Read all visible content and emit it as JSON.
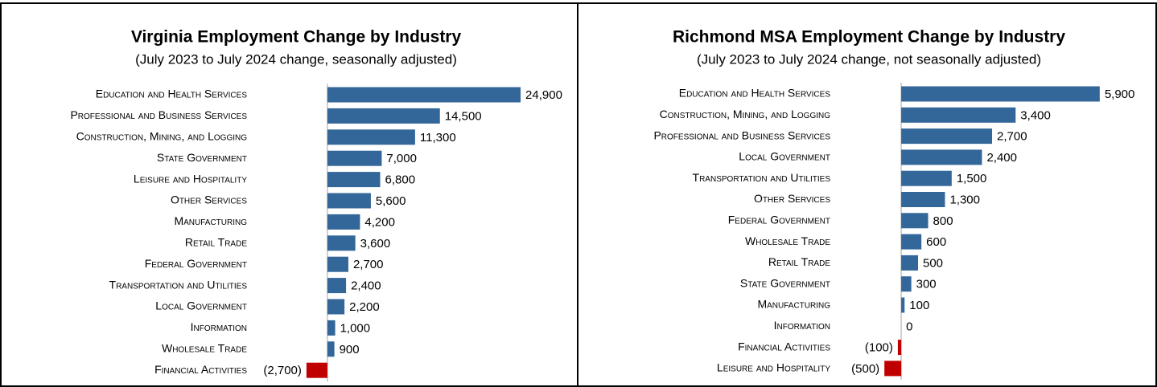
{
  "chart_data": [
    {
      "type": "barh",
      "title": "Virginia Employment Change by Industry",
      "subtitle": "(July 2023 to July 2024 change, seasonally adjusted)",
      "categories": [
        "Education and Health Services",
        "Professional and Business Services",
        "Construction, Mining, and Logging",
        "State Government",
        "Leisure and Hospitality",
        "Other Services",
        "Manufacturing",
        "Retail Trade",
        "Federal Government",
        "Transportation and Utilities",
        "Local Government",
        "Information",
        "Wholesale Trade",
        "Financial Activities"
      ],
      "values": [
        24900,
        14500,
        11300,
        7000,
        6800,
        5600,
        4200,
        3600,
        2700,
        2400,
        2200,
        1000,
        900,
        -2700
      ],
      "value_labels": [
        "24,900",
        "14,500",
        "11,300",
        "7,000",
        "6,800",
        "5,600",
        "4,200",
        "3,600",
        "2,700",
        "2,400",
        "2,200",
        "1,000",
        "900",
        "(2,700)"
      ],
      "color": "#336699",
      "negative_color": "#c00000",
      "xlim": [
        -3000,
        25000
      ]
    },
    {
      "type": "barh",
      "title": "Richmond MSA Employment Change by Industry",
      "subtitle": "(July 2023 to July 2024 change, not seasonally adjusted)",
      "categories": [
        "Education and Health Services",
        "Construction, Mining, and Logging",
        "Professional and Business Services",
        "Local Government",
        "Transportation and Utilities",
        "Other Services",
        "Federal Government",
        "Wholesale Trade",
        "Retail Trade",
        "State Government",
        "Manufacturing",
        "Information",
        "Financial Activities",
        "Leisure and Hospitality"
      ],
      "values": [
        5900,
        3400,
        2700,
        2400,
        1500,
        1300,
        800,
        600,
        500,
        300,
        100,
        0,
        -100,
        -500
      ],
      "value_labels": [
        "5,900",
        "3,400",
        "2,700",
        "2,400",
        "1,500",
        "1,300",
        "800",
        "600",
        "500",
        "300",
        "100",
        "0",
        "(100)",
        "(500)"
      ],
      "color": "#336699",
      "negative_color": "#c00000",
      "xlim": [
        -600,
        6000
      ]
    }
  ]
}
